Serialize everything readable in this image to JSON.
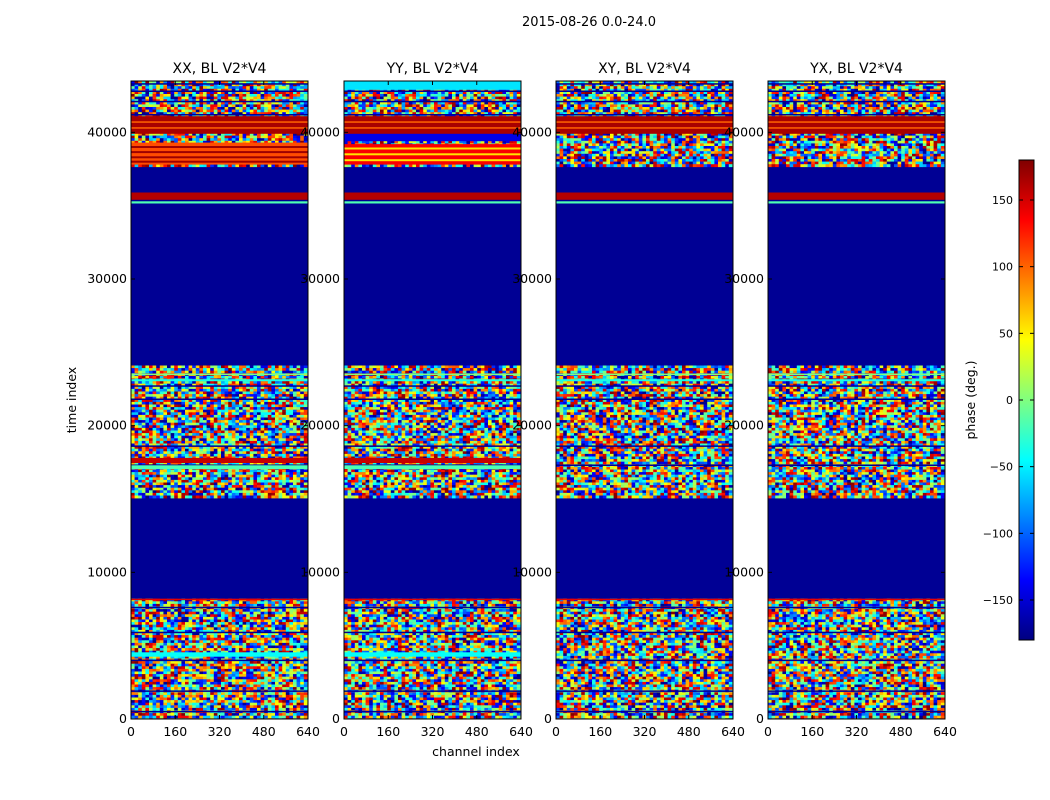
{
  "chart_data": {
    "type": "heatmap",
    "title": "2015-08-26 0.0-24.0",
    "xlabel": "channel index",
    "ylabel": "time index",
    "xlim": [
      0,
      640
    ],
    "ylim": [
      0,
      43500
    ],
    "xticks": [
      "0",
      "160",
      "320",
      "480",
      "640"
    ],
    "yticks": [
      "0",
      "10000",
      "20000",
      "30000",
      "40000"
    ],
    "panels": [
      {
        "name": "XX",
        "title": "XX, BL V2*V4"
      },
      {
        "name": "YY",
        "title": "YY, BL V2*V4"
      },
      {
        "name": "XY",
        "title": "XY, BL V2*V4"
      },
      {
        "name": "YX",
        "title": "YX, BL V2*V4"
      }
    ],
    "colorbar": {
      "label": "phase (deg.)",
      "range": [
        -180,
        180
      ],
      "colormap": "jet",
      "ticks": [
        "150",
        "100",
        "50",
        "0",
        "−50",
        "−100",
        "−150"
      ],
      "tick_values": [
        150,
        100,
        50,
        0,
        -50,
        -100,
        -150
      ]
    },
    "bands": [
      {
        "from": 0,
        "to": 8200,
        "state": "noisy phase"
      },
      {
        "from": 8200,
        "to": 15200,
        "state": "flagged (-180)"
      },
      {
        "from": 15200,
        "to": 24100,
        "state": "noisy phase"
      },
      {
        "from": 24100,
        "to": 35000,
        "state": "flagged (-180)"
      },
      {
        "from": 35000,
        "to": 35900,
        "state": "stripes near +180"
      },
      {
        "from": 35900,
        "to": 37800,
        "state": "flagged (-180)"
      },
      {
        "from": 37800,
        "to": 43500,
        "state": "coherent / noisy phase"
      }
    ]
  }
}
